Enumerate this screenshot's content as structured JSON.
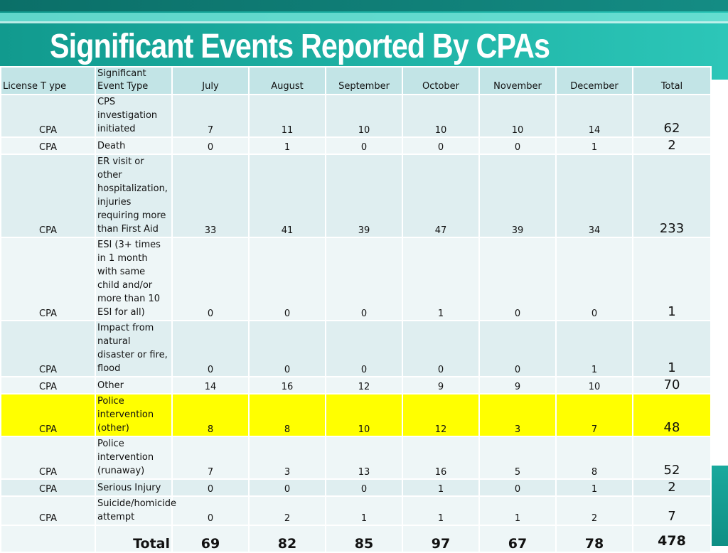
{
  "slide": {
    "title": "Significant Events Reported By CPAs"
  },
  "table": {
    "headers": {
      "license": "License T ype",
      "event_type": "Significant Event Type",
      "months": [
        "July",
        "August",
        "September",
        "October",
        "November",
        "December"
      ],
      "total": "Total"
    },
    "rows": [
      {
        "license": "CPA",
        "event": "CPS investigation initiated",
        "values": [
          "7",
          "11",
          "10",
          "10",
          "10",
          "14"
        ],
        "total": "62",
        "highlight": false
      },
      {
        "license": "CPA",
        "event": "Death",
        "values": [
          "0",
          "1",
          "0",
          "0",
          "0",
          "1"
        ],
        "total": "2",
        "highlight": false
      },
      {
        "license": "CPA",
        "event": "ER visit or other hospitalization, injuries requiring more than First Aid",
        "values": [
          "33",
          "41",
          "39",
          "47",
          "39",
          "34"
        ],
        "total": "233",
        "highlight": false
      },
      {
        "license": "CPA",
        "event": "ESI (3+ times in 1 month with same child and/or more than 10 ESI for all)",
        "values": [
          "0",
          "0",
          "0",
          "1",
          "0",
          "0"
        ],
        "total": "1",
        "highlight": false
      },
      {
        "license": "CPA",
        "event": "Impact from natural disaster or fire, flood",
        "values": [
          "0",
          "0",
          "0",
          "0",
          "0",
          "1"
        ],
        "total": "1",
        "highlight": false
      },
      {
        "license": "CPA",
        "event": "Other",
        "values": [
          "14",
          "16",
          "12",
          "9",
          "9",
          "10"
        ],
        "total": "70",
        "highlight": false
      },
      {
        "license": "CPA",
        "event": "Police intervention (other)",
        "values": [
          "8",
          "8",
          "10",
          "12",
          "3",
          "7"
        ],
        "total": "48",
        "highlight": true
      },
      {
        "license": "CPA",
        "event": "Police intervention (runaway)",
        "values": [
          "7",
          "3",
          "13",
          "16",
          "5",
          "8"
        ],
        "total": "52",
        "highlight": false
      },
      {
        "license": "CPA",
        "event": "Serious Injury",
        "values": [
          "0",
          "0",
          "0",
          "1",
          "0",
          "1"
        ],
        "total": "2",
        "highlight": false
      },
      {
        "license": "CPA",
        "event": "Suicide/homicide attempt",
        "values": [
          "0",
          "2",
          "1",
          "1",
          "1",
          "2"
        ],
        "total": "7",
        "highlight": false
      }
    ],
    "footer": {
      "label": "Total",
      "values": [
        "69",
        "82",
        "85",
        "97",
        "67",
        "78"
      ],
      "grand_total": "478"
    }
  },
  "colors": {
    "header_band": "#1fb3a6",
    "header_row": "#c2e4e6",
    "row_alt_1": "#dfeef0",
    "row_alt_2": "#eef6f7",
    "highlight": "#ffff00"
  }
}
